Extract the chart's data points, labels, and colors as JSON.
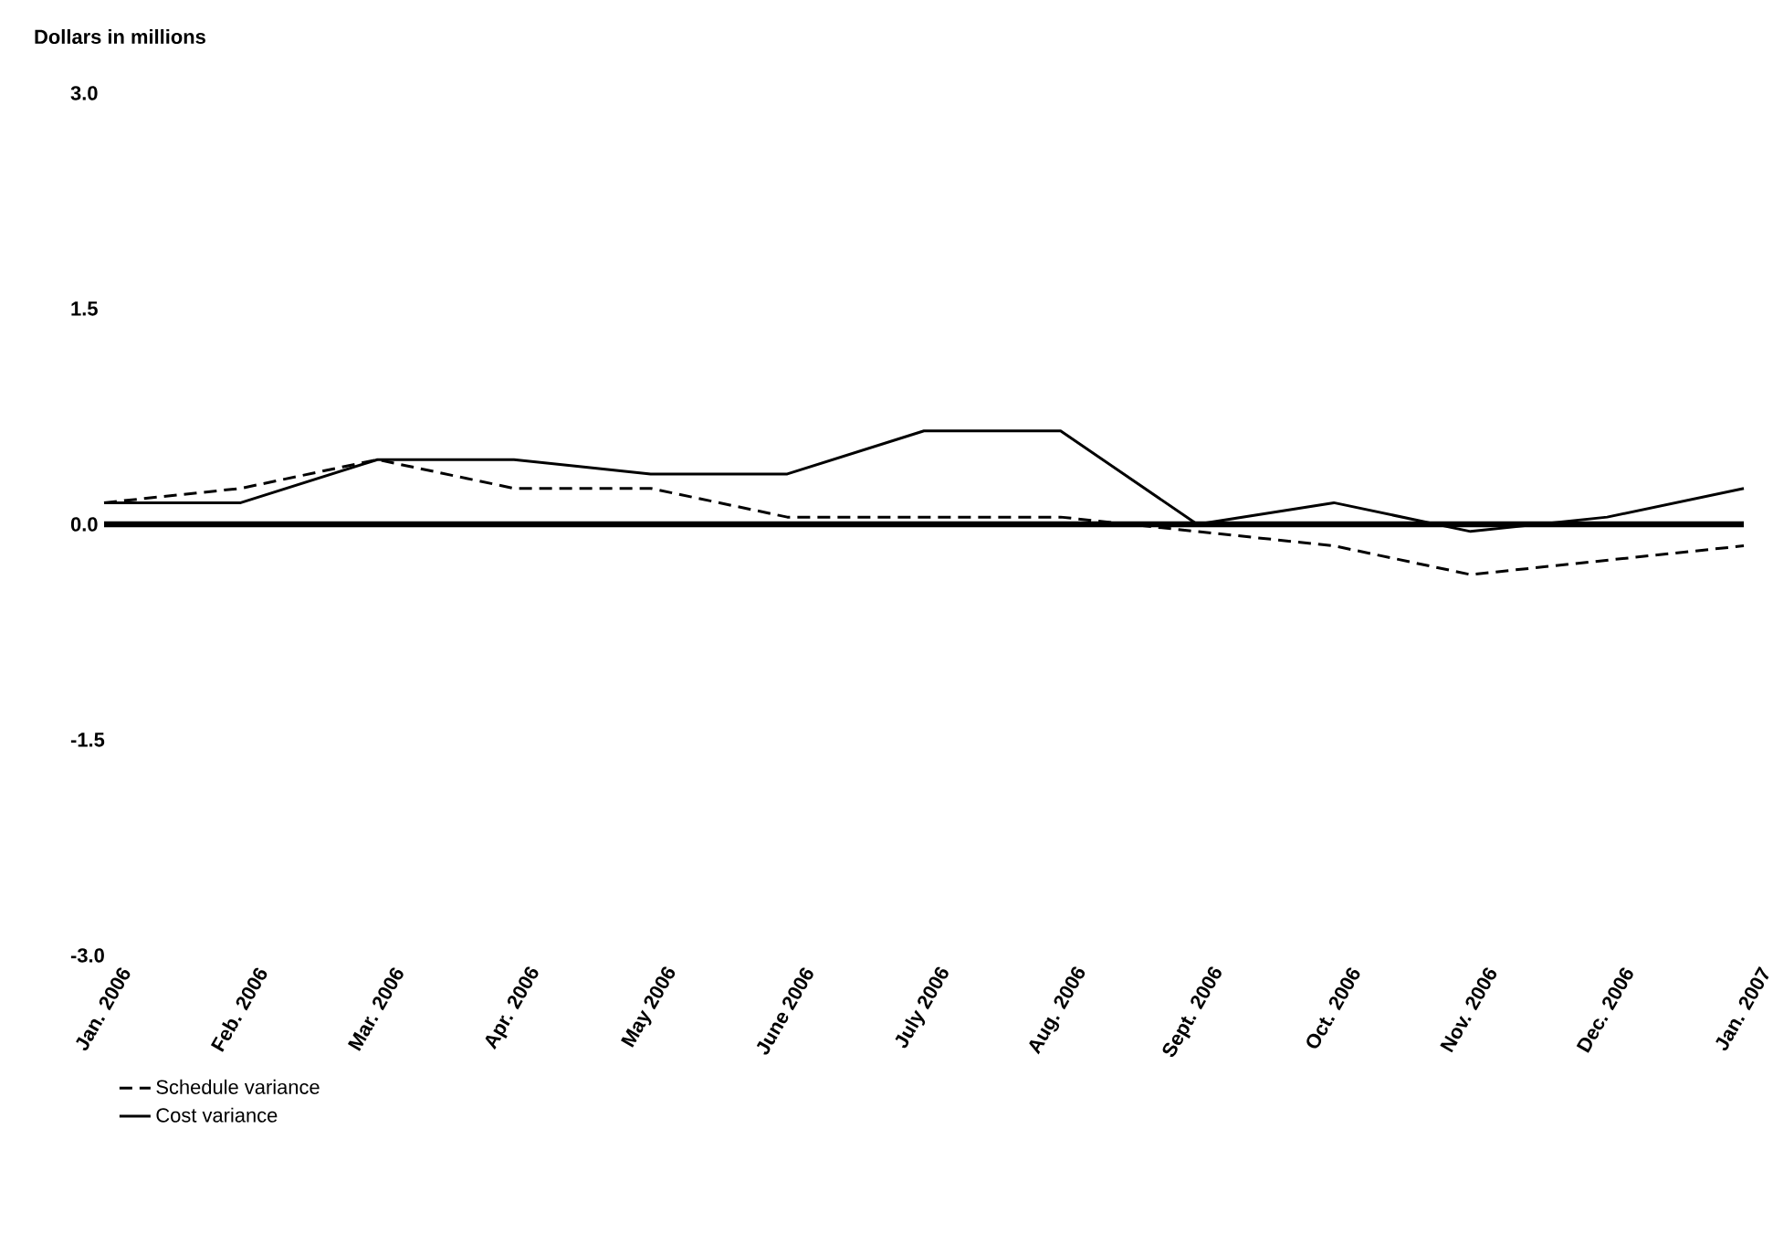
{
  "chart_data": {
    "type": "line",
    "ylabel": "Dollars in millions",
    "categories": [
      "Jan. 2006",
      "Feb. 2006",
      "Mar. 2006",
      "Apr. 2006",
      "May 2006",
      "June 2006",
      "July 2006",
      "Aug. 2006",
      "Sept. 2006",
      "Oct. 2006",
      "Nov. 2006",
      "Dec. 2006",
      "Jan. 2007"
    ],
    "series": [
      {
        "name": "Schedule variance",
        "color": "#000000",
        "line_style": "dashed",
        "values": [
          0.15,
          0.25,
          0.45,
          0.25,
          0.25,
          0.05,
          0.05,
          0.05,
          -0.05,
          -0.15,
          -0.35,
          -0.25,
          -0.15
        ]
      },
      {
        "name": "Cost variance",
        "color": "#000000",
        "line_style": "solid",
        "values": [
          0.15,
          0.15,
          0.45,
          0.45,
          0.35,
          0.35,
          0.65,
          0.65,
          0,
          0.15,
          -0.05,
          0.05,
          0.25
        ]
      }
    ],
    "ylim": [
      -3,
      3
    ],
    "yticks": [
      {
        "value": -3,
        "label": "-3.0"
      },
      {
        "value": -1.5,
        "label": "-1.5"
      },
      {
        "value": 0,
        "label": "0.0"
      },
      {
        "value": 1.5,
        "label": "1.5"
      },
      {
        "value": 3,
        "label": "3.0"
      }
    ],
    "ref_lines": [
      {
        "axis": "y",
        "value": 0,
        "color": "#000000"
      }
    ],
    "marker": "none",
    "legend": "bottom left"
  }
}
